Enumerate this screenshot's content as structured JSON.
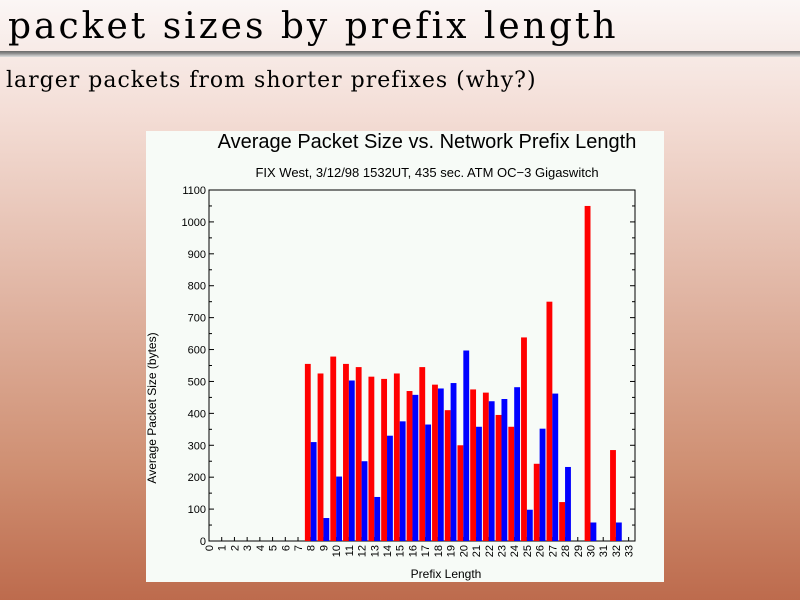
{
  "slide": {
    "title": "packet sizes by prefix length",
    "subtitle": "larger packets from shorter prefixes (why?)"
  },
  "colors": {
    "series_red": "#ff0000",
    "series_blue": "#0000ff",
    "panel_background": "#f7fbf7"
  },
  "chart_data": {
    "type": "bar",
    "title": "Average Packet Size vs. Network Prefix Length",
    "subtitle": "FIX West, 3/12/98 1532UT, 435 sec. ATM OC−3 Gigaswitch",
    "xlabel": "Prefix Length",
    "ylabel": "Average Packet Size (bytes)",
    "ylim": [
      0,
      1100
    ],
    "y_ticks": [
      0,
      100,
      200,
      300,
      400,
      500,
      600,
      700,
      800,
      900,
      1000,
      1100
    ],
    "grid": false,
    "legend": "none",
    "categories": [
      "0",
      "1",
      "2",
      "3",
      "4",
      "5",
      "6",
      "7",
      "8",
      "9",
      "10",
      "11",
      "12",
      "13",
      "14",
      "15",
      "16",
      "17",
      "18",
      "19",
      "20",
      "21",
      "22",
      "23",
      "24",
      "25",
      "26",
      "27",
      "28",
      "29",
      "30",
      "31",
      "32",
      "33"
    ],
    "series": [
      {
        "color": "#ff0000",
        "values": [
          null,
          null,
          null,
          null,
          null,
          null,
          null,
          null,
          555,
          525,
          578,
          555,
          545,
          515,
          508,
          525,
          470,
          545,
          490,
          410,
          300,
          475,
          465,
          395,
          358,
          638,
          242,
          750,
          122,
          null,
          1050,
          null,
          285,
          null
        ]
      },
      {
        "color": "#0000ff",
        "values": [
          null,
          null,
          null,
          null,
          null,
          null,
          null,
          null,
          310,
          72,
          202,
          503,
          250,
          138,
          330,
          375,
          458,
          365,
          478,
          495,
          597,
          358,
          438,
          445,
          482,
          98,
          352,
          462,
          232,
          null,
          58,
          null,
          58,
          null
        ]
      }
    ]
  }
}
